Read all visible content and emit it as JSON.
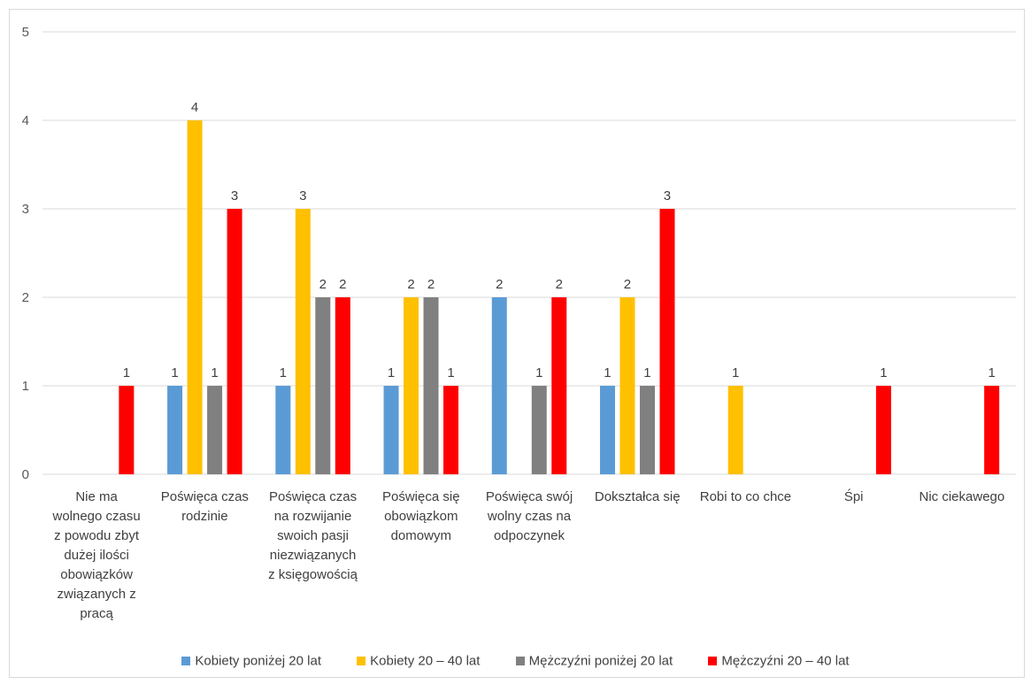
{
  "chart_data": {
    "type": "bar",
    "title": "",
    "xlabel": "",
    "ylabel": "",
    "ylim": [
      0,
      5
    ],
    "yticks": [
      0,
      1,
      2,
      3,
      4,
      5
    ],
    "grid": true,
    "legend_position": "bottom",
    "categories": [
      "Nie ma wolnego czasu z powodu zbyt dużej ilości obowiązków związanych z pracą",
      "Poświęca czas rodzinie",
      "Poświęca czas na rozwijanie swoich pasji niezwiązanych z księgowością",
      "Poświęca się obowiązkom domowym",
      "Poświęca swój wolny czas na odpoczynek",
      "Dokształca się",
      "Robi to co chce",
      "Śpi",
      "Nic ciekawego"
    ],
    "category_lines": [
      [
        "Nie ma",
        "wolnego czasu",
        "z powodu zbyt",
        "dużej ilości",
        "obowiązków",
        "związanych z",
        "pracą"
      ],
      [
        "Poświęca czas",
        "rodzinie"
      ],
      [
        "Poświęca czas",
        "na rozwijanie",
        "swoich pasji",
        "niezwiązanych",
        "z księgowością"
      ],
      [
        "Poświęca się",
        "obowiązkom",
        "domowym"
      ],
      [
        "Poświęca swój",
        "wolny czas na",
        "odpoczynek"
      ],
      [
        "Dokształca się"
      ],
      [
        "Robi to co chce"
      ],
      [
        "Śpi"
      ],
      [
        "Nic ciekawego"
      ]
    ],
    "series": [
      {
        "name": "Kobiety poniżej 20 lat",
        "color": "#5b9bd5",
        "values": [
          null,
          1,
          1,
          1,
          2,
          1,
          null,
          null,
          null
        ]
      },
      {
        "name": "Kobiety  20 – 40 lat",
        "color": "#ffc000",
        "values": [
          null,
          4,
          3,
          2,
          null,
          2,
          1,
          null,
          null
        ]
      },
      {
        "name": "Mężczyźni poniżej 20 lat",
        "color": "#808080",
        "values": [
          null,
          1,
          2,
          2,
          1,
          1,
          null,
          null,
          null
        ]
      },
      {
        "name": "Mężczyźni  20 – 40 lat",
        "color": "#ff0000",
        "values": [
          1,
          3,
          2,
          1,
          2,
          3,
          null,
          1,
          1
        ]
      }
    ]
  }
}
